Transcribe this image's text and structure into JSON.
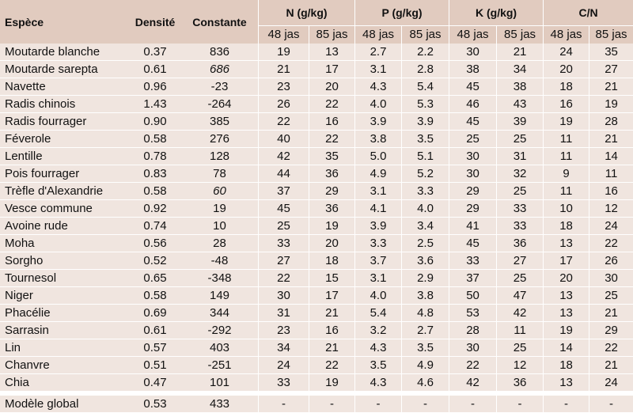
{
  "headers": {
    "espece": "Espèce",
    "densite": "Densité",
    "constante": "Constante",
    "n": "N (g/kg)",
    "p": "P (g/kg)",
    "k": "K (g/kg)",
    "cn": "C/N",
    "d48": "48 jas",
    "d85": "85 jas"
  },
  "rows": [
    {
      "espece": "Moutarde blanche",
      "densite": "0.37",
      "constante": "836",
      "n48": "19",
      "n85": "13",
      "p48": "2.7",
      "p85": "2.2",
      "k48": "30",
      "k85": "21",
      "cn48": "24",
      "cn85": "35"
    },
    {
      "espece": "Moutarde sarepta",
      "densite": "0.61",
      "constante": "686",
      "n48": "21",
      "n85": "17",
      "p48": "3.1",
      "p85": "2.8",
      "k48": "38",
      "k85": "34",
      "cn48": "20",
      "cn85": "27"
    },
    {
      "espece": "Navette",
      "densite": "0.96",
      "constante": "-23",
      "n48": "23",
      "n85": "20",
      "p48": "4.3",
      "p85": "5.4",
      "k48": "45",
      "k85": "38",
      "cn48": "18",
      "cn85": "21"
    },
    {
      "espece": "Radis chinois",
      "densite": "1.43",
      "constante": "-264",
      "n48": "26",
      "n85": "22",
      "p48": "4.0",
      "p85": "5.3",
      "k48": "46",
      "k85": "43",
      "cn48": "16",
      "cn85": "19"
    },
    {
      "espece": "Radis fourrager",
      "densite": "0.90",
      "constante": "385",
      "n48": "22",
      "n85": "16",
      "p48": "3.9",
      "p85": "3.9",
      "k48": "45",
      "k85": "39",
      "cn48": "19",
      "cn85": "28"
    },
    {
      "espece": "Féverole",
      "densite": "0.58",
      "constante": "276",
      "n48": "40",
      "n85": "22",
      "p48": "3.8",
      "p85": "3.5",
      "k48": "25",
      "k85": "25",
      "cn48": "11",
      "cn85": "21"
    },
    {
      "espece": "Lentille",
      "densite": "0.78",
      "constante": "128",
      "n48": "42",
      "n85": "35",
      "p48": "5.0",
      "p85": "5.1",
      "k48": "30",
      "k85": "31",
      "cn48": "11",
      "cn85": "14"
    },
    {
      "espece": "Pois fourrager",
      "densite": "0.83",
      "constante": "78",
      "n48": "44",
      "n85": "36",
      "p48": "4.9",
      "p85": "5.2",
      "k48": "30",
      "k85": "32",
      "cn48": "9",
      "cn85": "11"
    },
    {
      "espece": "Trèfle d'Alexandrie",
      "densite": "0.58",
      "constante": "60",
      "n48": "37",
      "n85": "29",
      "p48": "3.1",
      "p85": "3.3",
      "k48": "29",
      "k85": "25",
      "cn48": "11",
      "cn85": "16"
    },
    {
      "espece": "Vesce commune",
      "densite": "0.92",
      "constante": "19",
      "n48": "45",
      "n85": "36",
      "p48": "4.1",
      "p85": "4.0",
      "k48": "29",
      "k85": "33",
      "cn48": "10",
      "cn85": "12"
    },
    {
      "espece": "Avoine rude",
      "densite": "0.74",
      "constante": "10",
      "n48": "25",
      "n85": "19",
      "p48": "3.9",
      "p85": "3.4",
      "k48": "41",
      "k85": "33",
      "cn48": "18",
      "cn85": "24"
    },
    {
      "espece": "Moha",
      "densite": "0.56",
      "constante": "28",
      "n48": "33",
      "n85": "20",
      "p48": "3.3",
      "p85": "2.5",
      "k48": "45",
      "k85": "36",
      "cn48": "13",
      "cn85": "22"
    },
    {
      "espece": "Sorgho",
      "densite": "0.52",
      "constante": "-48",
      "n48": "27",
      "n85": "18",
      "p48": "3.7",
      "p85": "3.6",
      "k48": "33",
      "k85": "27",
      "cn48": "17",
      "cn85": "26"
    },
    {
      "espece": "Tournesol",
      "densite": "0.65",
      "constante": "-348",
      "n48": "22",
      "n85": "15",
      "p48": "3.1",
      "p85": "2.9",
      "k48": "37",
      "k85": "25",
      "cn48": "20",
      "cn85": "30"
    },
    {
      "espece": "Niger",
      "densite": "0.58",
      "constante": "149",
      "n48": "30",
      "n85": "17",
      "p48": "4.0",
      "p85": "3.8",
      "k48": "50",
      "k85": "47",
      "cn48": "13",
      "cn85": "25"
    },
    {
      "espece": "Phacélie",
      "densite": "0.69",
      "constante": "344",
      "n48": "31",
      "n85": "21",
      "p48": "5.4",
      "p85": "4.8",
      "k48": "53",
      "k85": "42",
      "cn48": "13",
      "cn85": "21"
    },
    {
      "espece": "Sarrasin",
      "densite": "0.61",
      "constante": "-292",
      "n48": "23",
      "n85": "16",
      "p48": "3.2",
      "p85": "2.7",
      "k48": "28",
      "k85": "11",
      "cn48": "19",
      "cn85": "29"
    },
    {
      "espece": "Lin",
      "densite": "0.57",
      "constante": "403",
      "n48": "34",
      "n85": "21",
      "p48": "4.3",
      "p85": "3.5",
      "k48": "30",
      "k85": "25",
      "cn48": "14",
      "cn85": "22"
    },
    {
      "espece": "Chanvre",
      "densite": "0.51",
      "constante": "-251",
      "n48": "24",
      "n85": "22",
      "p48": "3.5",
      "p85": "4.9",
      "k48": "22",
      "k85": "12",
      "cn48": "18",
      "cn85": "21"
    },
    {
      "espece": "Chia",
      "densite": "0.47",
      "constante": "101",
      "n48": "33",
      "n85": "19",
      "p48": "4.3",
      "p85": "4.6",
      "k48": "42",
      "k85": "36",
      "cn48": "13",
      "cn85": "24"
    }
  ],
  "global": {
    "espece": "Modèle global",
    "densite": "0.53",
    "constante": "433",
    "n48": "-",
    "n85": "-",
    "p48": "-",
    "p85": "-",
    "k48": "-",
    "k85": "-",
    "cn48": "-",
    "cn85": "-"
  }
}
